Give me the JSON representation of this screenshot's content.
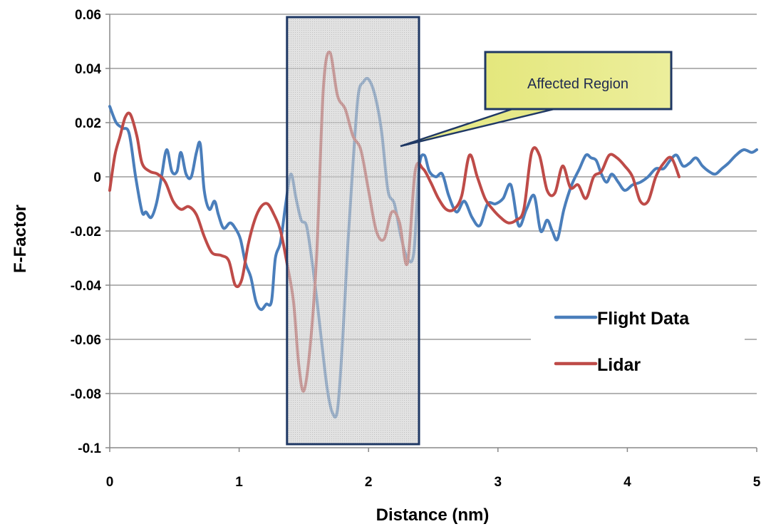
{
  "chart_data": {
    "type": "line",
    "title": "",
    "xlabel": "Distance (nm)",
    "ylabel": "F-Factor",
    "xlim": [
      0,
      5
    ],
    "ylim": [
      -0.1,
      0.06
    ],
    "x_ticks": [
      0,
      1,
      2,
      3,
      4,
      5
    ],
    "y_ticks": [
      0.06,
      0.04,
      0.02,
      0,
      -0.02,
      -0.04,
      -0.06,
      -0.08,
      -0.1
    ],
    "x_tick_labels": [
      "0",
      "1",
      "2",
      "3",
      "4",
      "5"
    ],
    "y_tick_labels": [
      "0.06",
      "0.04",
      "0.02",
      "0",
      "-0.02",
      "-0.04",
      "-0.06",
      "-0.08",
      "-0.1"
    ],
    "grid": "horizontal",
    "legend_position": "lower-right",
    "series": [
      {
        "name": "Flight Data",
        "color": "#4a7ebb",
        "x": [
          0,
          0.05,
          0.1,
          0.15,
          0.2,
          0.25,
          0.28,
          0.32,
          0.36,
          0.4,
          0.44,
          0.48,
          0.52,
          0.55,
          0.59,
          0.63,
          0.67,
          0.7,
          0.73,
          0.77,
          0.81,
          0.84,
          0.88,
          0.93,
          0.97,
          1.01,
          1.05,
          1.09,
          1.13,
          1.17,
          1.21,
          1.25,
          1.28,
          1.32,
          1.36,
          1.4,
          1.44,
          1.48,
          1.52,
          1.56,
          1.6,
          1.64,
          1.68,
          1.72,
          1.76,
          1.8,
          1.84,
          1.88,
          1.92,
          1.96,
          2.0,
          2.05,
          2.1,
          2.15,
          2.2,
          2.25,
          2.3,
          2.35,
          2.39,
          2.43,
          2.47,
          2.52,
          2.57,
          2.62,
          2.68,
          2.74,
          2.8,
          2.86,
          2.92,
          2.98,
          3.04,
          3.1,
          3.16,
          3.22,
          3.28,
          3.33,
          3.38,
          3.42,
          3.46,
          3.51,
          3.57,
          3.63,
          3.68,
          3.72,
          3.76,
          3.8,
          3.84,
          3.88,
          3.93,
          3.98,
          4.04,
          4.1,
          4.16,
          4.22,
          4.28,
          4.33,
          4.38,
          4.43,
          4.48,
          4.53,
          4.58,
          4.63,
          4.68,
          4.73,
          4.78,
          4.84,
          4.9,
          4.96,
          5.0
        ],
        "y": [
          0.026,
          0.02,
          0.018,
          0.016,
          0.0,
          -0.013,
          -0.013,
          -0.015,
          -0.01,
          0.0,
          0.01,
          0.002,
          0.002,
          0.009,
          0.001,
          0.0,
          0.009,
          0.012,
          -0.005,
          -0.012,
          -0.009,
          -0.014,
          -0.019,
          -0.017,
          -0.019,
          -0.023,
          -0.032,
          -0.037,
          -0.046,
          -0.049,
          -0.047,
          -0.046,
          -0.03,
          -0.024,
          -0.01,
          0.001,
          -0.008,
          -0.016,
          -0.018,
          -0.03,
          -0.045,
          -0.062,
          -0.078,
          -0.087,
          -0.086,
          -0.06,
          -0.025,
          0.005,
          0.03,
          0.035,
          0.036,
          0.03,
          0.017,
          -0.005,
          -0.01,
          -0.022,
          -0.03,
          -0.028,
          0.003,
          0.008,
          0.002,
          0.0,
          0.001,
          -0.007,
          -0.013,
          -0.009,
          -0.015,
          -0.018,
          -0.01,
          -0.01,
          -0.008,
          -0.003,
          -0.018,
          -0.012,
          -0.007,
          -0.02,
          -0.016,
          -0.02,
          -0.023,
          -0.012,
          -0.003,
          0.003,
          0.008,
          0.007,
          0.006,
          0.001,
          -0.002,
          0.001,
          -0.002,
          -0.005,
          -0.003,
          -0.002,
          0.0,
          0.003,
          0.003,
          0.006,
          0.008,
          0.004,
          0.005,
          0.007,
          0.004,
          0.002,
          0.001,
          0.003,
          0.005,
          0.008,
          0.01,
          0.009,
          0.01
        ]
      },
      {
        "name": "Lidar",
        "color": "#be4b48",
        "x": [
          0,
          0.04,
          0.08,
          0.12,
          0.16,
          0.21,
          0.25,
          0.31,
          0.37,
          0.43,
          0.49,
          0.55,
          0.61,
          0.67,
          0.73,
          0.79,
          0.86,
          0.92,
          0.97,
          1.02,
          1.07,
          1.12,
          1.17,
          1.22,
          1.27,
          1.32,
          1.37,
          1.42,
          1.46,
          1.5,
          1.55,
          1.6,
          1.65,
          1.7,
          1.76,
          1.82,
          1.88,
          1.94,
          2.0,
          2.06,
          2.12,
          2.18,
          2.24,
          2.3,
          2.36,
          2.42,
          2.48,
          2.54,
          2.6,
          2.66,
          2.72,
          2.78,
          2.84,
          2.9,
          2.96,
          3.02,
          3.08,
          3.14,
          3.2,
          3.26,
          3.32,
          3.38,
          3.44,
          3.5,
          3.56,
          3.62,
          3.68,
          3.74,
          3.8,
          3.86,
          3.92,
          3.98,
          4.04,
          4.1,
          4.16,
          4.22,
          4.28,
          4.34,
          4.4
        ],
        "y": [
          -0.005,
          0.008,
          0.015,
          0.022,
          0.023,
          0.015,
          0.005,
          0.002,
          0.001,
          -0.002,
          -0.009,
          -0.012,
          -0.011,
          -0.014,
          -0.022,
          -0.028,
          -0.029,
          -0.031,
          -0.04,
          -0.038,
          -0.025,
          -0.016,
          -0.011,
          -0.01,
          -0.014,
          -0.02,
          -0.032,
          -0.046,
          -0.069,
          -0.079,
          -0.062,
          -0.028,
          0.032,
          0.046,
          0.03,
          0.025,
          0.015,
          0.01,
          -0.005,
          -0.02,
          -0.023,
          -0.013,
          -0.017,
          -0.032,
          0.002,
          0.003,
          -0.002,
          -0.008,
          -0.012,
          -0.012,
          -0.007,
          0.008,
          0.0,
          -0.008,
          -0.012,
          -0.015,
          -0.017,
          -0.016,
          -0.012,
          0.009,
          0.008,
          -0.005,
          -0.006,
          0.004,
          -0.004,
          -0.003,
          -0.008,
          0.0,
          0.002,
          0.008,
          0.007,
          0.004,
          0.0,
          -0.009,
          -0.009,
          0.0,
          0.005,
          0.007,
          0.0
        ]
      }
    ],
    "highlight_region": {
      "x_start": 1.37,
      "x_end": 2.39,
      "label": "Affected Region"
    }
  },
  "colors": {
    "grid": "#888888",
    "region_fill": "#c8c8c8",
    "region_border": "#1f3864",
    "callout_fill": "#e6e989",
    "callout_border": "#1f3864"
  }
}
